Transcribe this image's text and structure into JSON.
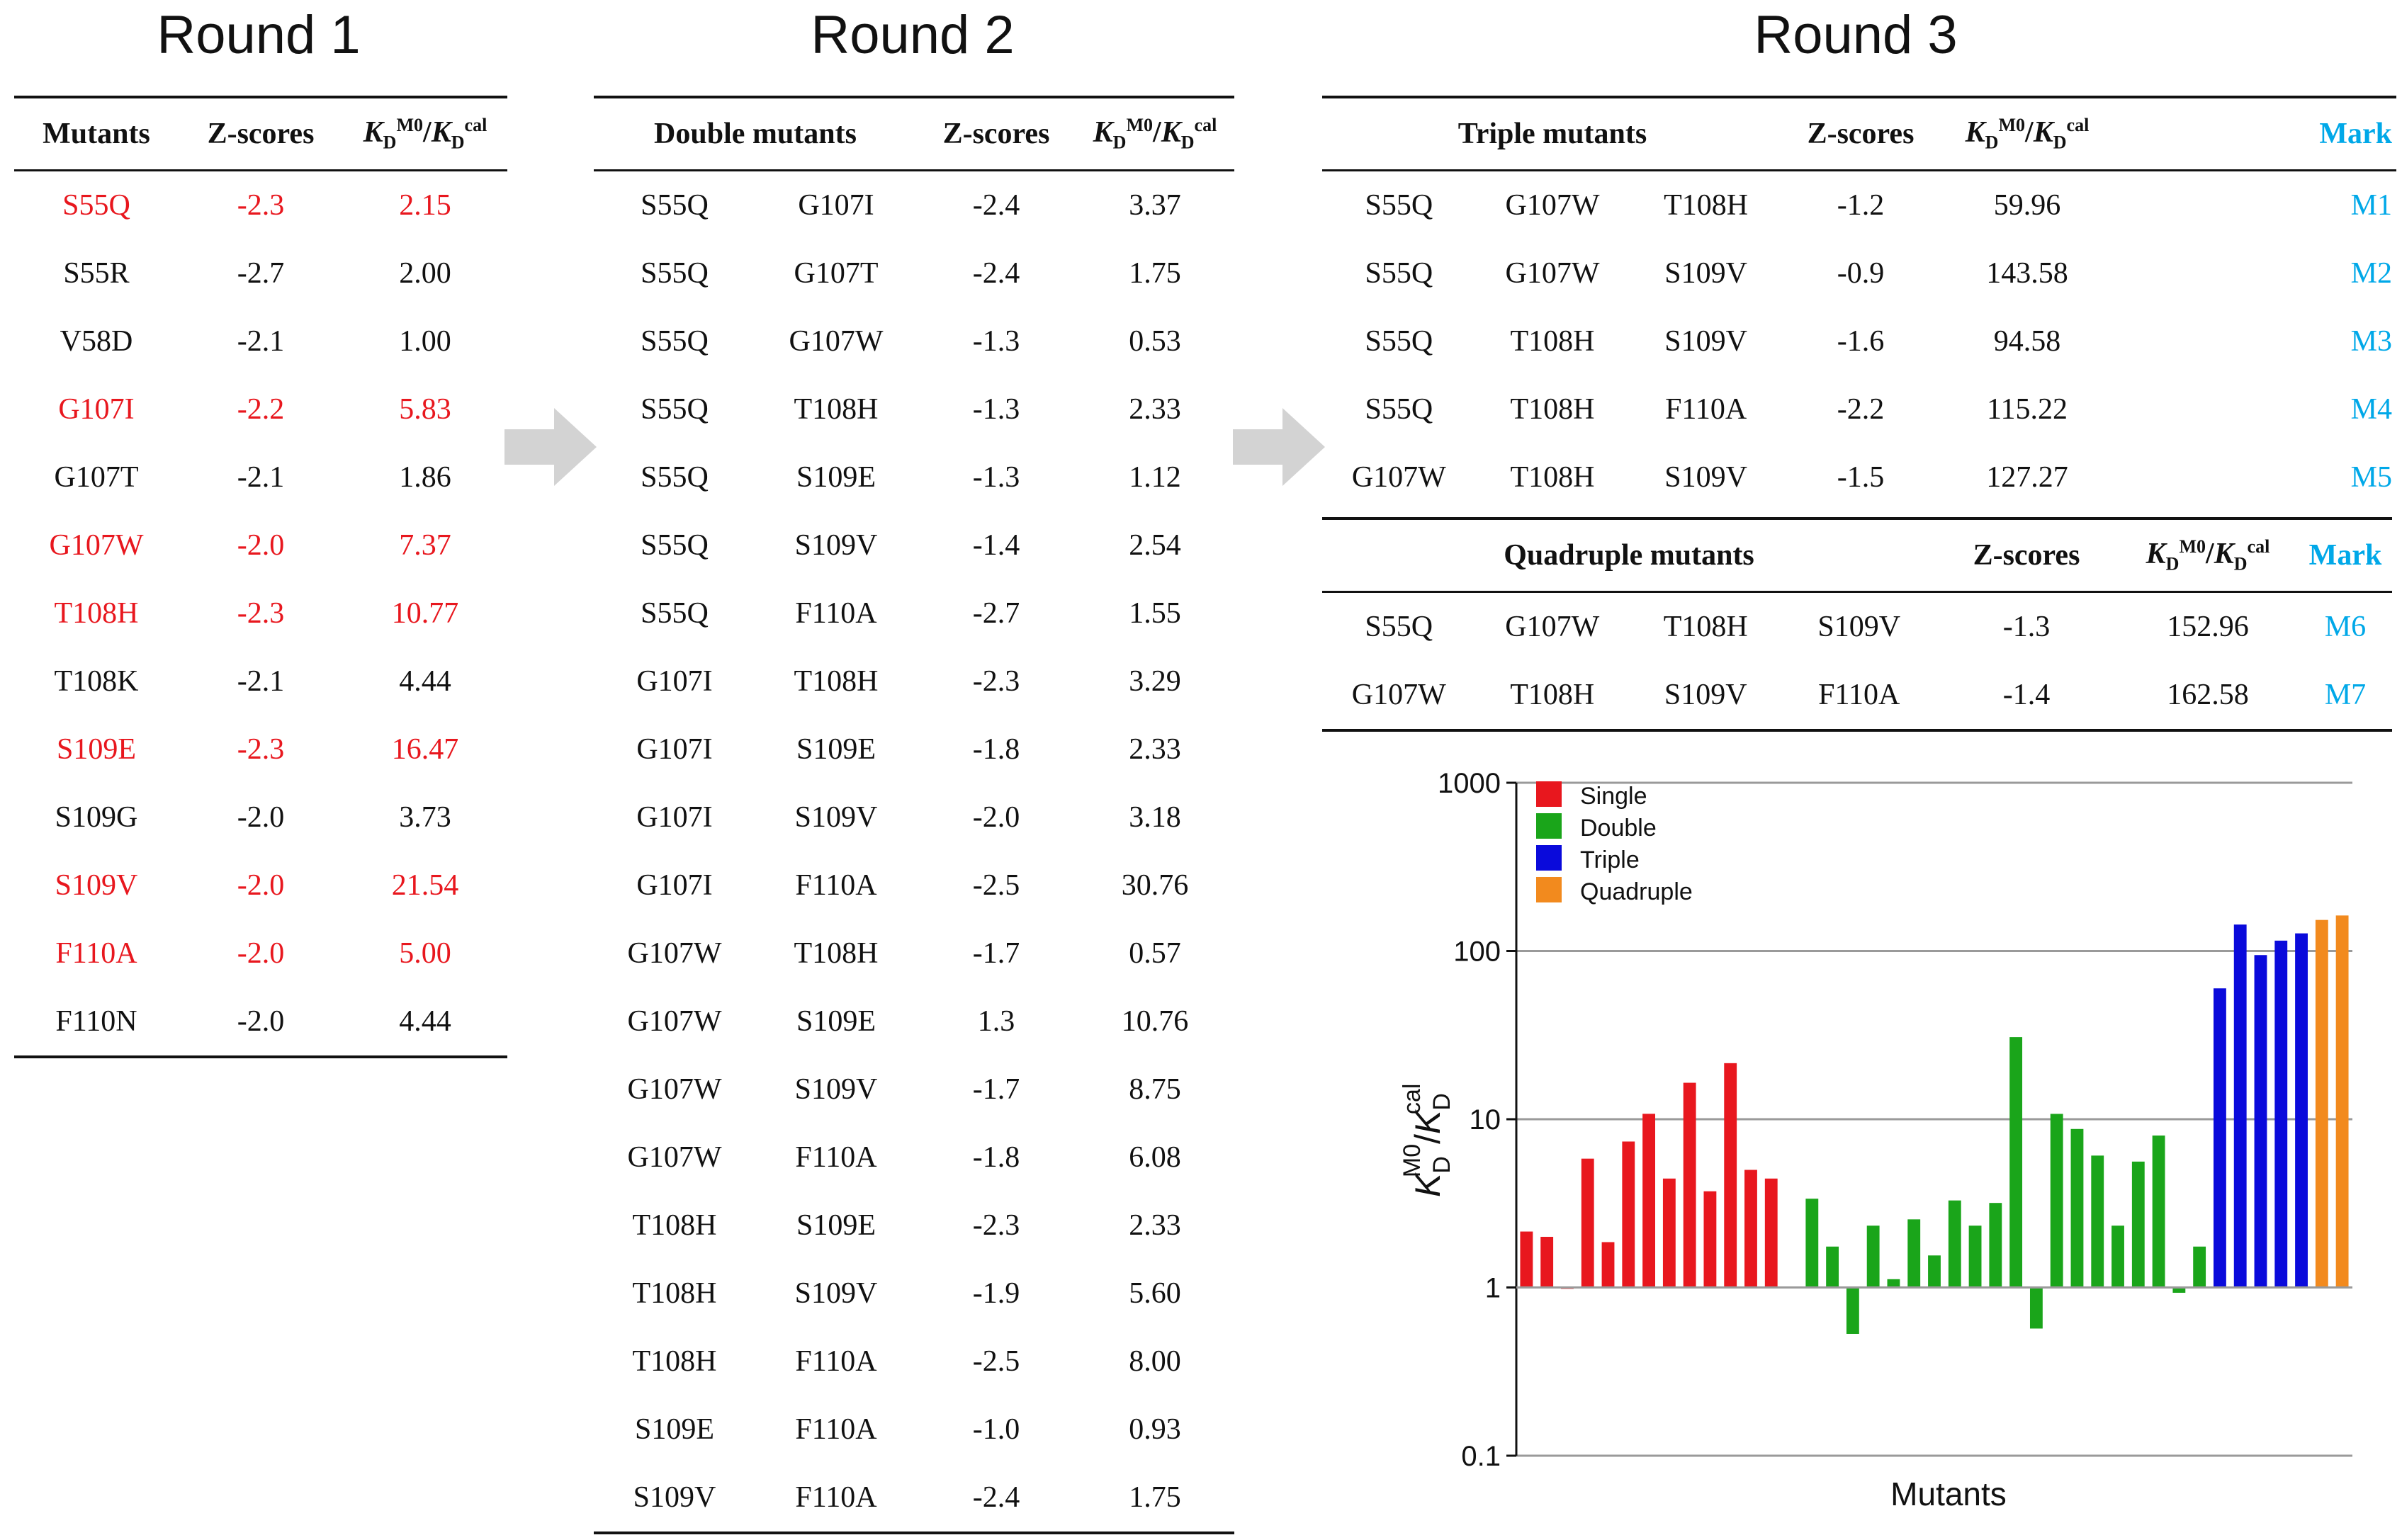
{
  "round1": {
    "title": "Round 1",
    "headers": {
      "mutants": "Mutants",
      "zscores": "Z-scores",
      "kd": "KDM0/KDcal"
    },
    "rows": [
      {
        "mutant": "S55Q",
        "z": "-2.3",
        "kd": "2.15",
        "highlight": true
      },
      {
        "mutant": "S55R",
        "z": "-2.7",
        "kd": "2.00",
        "highlight": false
      },
      {
        "mutant": "V58D",
        "z": "-2.1",
        "kd": "1.00",
        "highlight": false
      },
      {
        "mutant": "G107I",
        "z": "-2.2",
        "kd": "5.83",
        "highlight": true
      },
      {
        "mutant": "G107T",
        "z": "-2.1",
        "kd": "1.86",
        "highlight": false
      },
      {
        "mutant": "G107W",
        "z": "-2.0",
        "kd": "7.37",
        "highlight": true
      },
      {
        "mutant": "T108H",
        "z": "-2.3",
        "kd": "10.77",
        "highlight": true
      },
      {
        "mutant": "T108K",
        "z": "-2.1",
        "kd": "4.44",
        "highlight": false
      },
      {
        "mutant": "S109E",
        "z": "-2.3",
        "kd": "16.47",
        "highlight": true
      },
      {
        "mutant": "S109G",
        "z": "-2.0",
        "kd": "3.73",
        "highlight": false
      },
      {
        "mutant": "S109V",
        "z": "-2.0",
        "kd": "21.54",
        "highlight": true
      },
      {
        "mutant": "F110A",
        "z": "-2.0",
        "kd": "5.00",
        "highlight": true
      },
      {
        "mutant": "F110N",
        "z": "-2.0",
        "kd": "4.44",
        "highlight": false
      }
    ]
  },
  "round2": {
    "title": "Round 2",
    "headers": {
      "mutants": "Double mutants",
      "zscores": "Z-scores",
      "kd": "KDM0/KDcal"
    },
    "rows": [
      {
        "m1": "S55Q",
        "m2": "G107I",
        "z": "-2.4",
        "kd": "3.37"
      },
      {
        "m1": "S55Q",
        "m2": "G107T",
        "z": "-2.4",
        "kd": "1.75"
      },
      {
        "m1": "S55Q",
        "m2": "G107W",
        "z": "-1.3",
        "kd": "0.53"
      },
      {
        "m1": "S55Q",
        "m2": "T108H",
        "z": "-1.3",
        "kd": "2.33"
      },
      {
        "m1": "S55Q",
        "m2": "S109E",
        "z": "-1.3",
        "kd": "1.12"
      },
      {
        "m1": "S55Q",
        "m2": "S109V",
        "z": "-1.4",
        "kd": "2.54"
      },
      {
        "m1": "S55Q",
        "m2": "F110A",
        "z": "-2.7",
        "kd": "1.55"
      },
      {
        "m1": "G107I",
        "m2": "T108H",
        "z": "-2.3",
        "kd": "3.29"
      },
      {
        "m1": "G107I",
        "m2": "S109E",
        "z": "-1.8",
        "kd": "2.33"
      },
      {
        "m1": "G107I",
        "m2": "S109V",
        "z": "-2.0",
        "kd": "3.18"
      },
      {
        "m1": "G107I",
        "m2": "F110A",
        "z": "-2.5",
        "kd": "30.76"
      },
      {
        "m1": "G107W",
        "m2": "T108H",
        "z": "-1.7",
        "kd": "0.57"
      },
      {
        "m1": "G107W",
        "m2": "S109E",
        "z": "1.3",
        "kd": "10.76"
      },
      {
        "m1": "G107W",
        "m2": "S109V",
        "z": "-1.7",
        "kd": "8.75"
      },
      {
        "m1": "G107W",
        "m2": "F110A",
        "z": "-1.8",
        "kd": "6.08"
      },
      {
        "m1": "T108H",
        "m2": "S109E",
        "z": "-2.3",
        "kd": "2.33"
      },
      {
        "m1": "T108H",
        "m2": "S109V",
        "z": "-1.9",
        "kd": "5.60"
      },
      {
        "m1": "T108H",
        "m2": "F110A",
        "z": "-2.5",
        "kd": "8.00"
      },
      {
        "m1": "S109E",
        "m2": "F110A",
        "z": "-1.0",
        "kd": "0.93"
      },
      {
        "m1": "S109V",
        "m2": "F110A",
        "z": "-2.4",
        "kd": "1.75"
      }
    ]
  },
  "round3": {
    "title": "Round 3",
    "triple": {
      "headers": {
        "mutants": "Triple mutants",
        "zscores": "Z-scores",
        "kd": "KDM0/KDcal",
        "mark": "Mark"
      },
      "rows": [
        {
          "m1": "S55Q",
          "m2": "G107W",
          "m3": "T108H",
          "z": "-1.2",
          "kd": "59.96",
          "mark": "M1"
        },
        {
          "m1": "S55Q",
          "m2": "G107W",
          "m3": "S109V",
          "z": "-0.9",
          "kd": "143.58",
          "mark": "M2"
        },
        {
          "m1": "S55Q",
          "m2": "T108H",
          "m3": "S109V",
          "z": "-1.6",
          "kd": "94.58",
          "mark": "M3"
        },
        {
          "m1": "S55Q",
          "m2": "T108H",
          "m3": "F110A",
          "z": "-2.2",
          "kd": "115.22",
          "mark": "M4"
        },
        {
          "m1": "G107W",
          "m2": "T108H",
          "m3": "S109V",
          "z": "-1.5",
          "kd": "127.27",
          "mark": "M5"
        }
      ]
    },
    "quadruple": {
      "headers": {
        "mutants": "Quadruple mutants",
        "zscores": "Z-scores",
        "kd": "KDM0/KDcal",
        "mark": "Mark"
      },
      "rows": [
        {
          "m1": "S55Q",
          "m2": "G107W",
          "m3": "T108H",
          "m4": "S109V",
          "z": "-1.3",
          "kd": "152.96",
          "mark": "M6"
        },
        {
          "m1": "G107W",
          "m2": "T108H",
          "m3": "S109V",
          "m4": "F110A",
          "z": "-1.4",
          "kd": "162.58",
          "mark": "M7"
        }
      ]
    }
  },
  "colors": {
    "highlight": "#e8171e",
    "mark": "#00a8e8",
    "arrow": "#d3d3d3",
    "single": "#e8171e",
    "double": "#1aa51a",
    "triple": "#0a0adb",
    "quadruple": "#f28a1e"
  },
  "chart_data": {
    "type": "bar",
    "scale": "log",
    "baseline": 1,
    "ylim": [
      0.1,
      1000
    ],
    "yticks": [
      "0.1",
      "1",
      "10",
      "100",
      "1000"
    ],
    "xlabel": "Mutants",
    "ylabel": "KDM0/KDcal",
    "legend_position": "top-left",
    "series": [
      {
        "name": "Single",
        "values": [
          2.15,
          2.0,
          1.0,
          5.83,
          1.86,
          7.37,
          10.77,
          4.44,
          16.47,
          3.73,
          21.54,
          5.0,
          4.44
        ]
      },
      {
        "name": "Double",
        "values": [
          3.37,
          1.75,
          0.53,
          2.33,
          1.12,
          2.54,
          1.55,
          3.29,
          2.33,
          3.18,
          30.76,
          0.57,
          10.76,
          8.75,
          6.08,
          2.33,
          5.6,
          8.0,
          0.93,
          1.75
        ]
      },
      {
        "name": "Triple",
        "values": [
          59.96,
          143.58,
          94.58,
          115.22,
          127.27
        ]
      },
      {
        "name": "Quadruple",
        "values": [
          152.96,
          162.58
        ]
      }
    ]
  }
}
